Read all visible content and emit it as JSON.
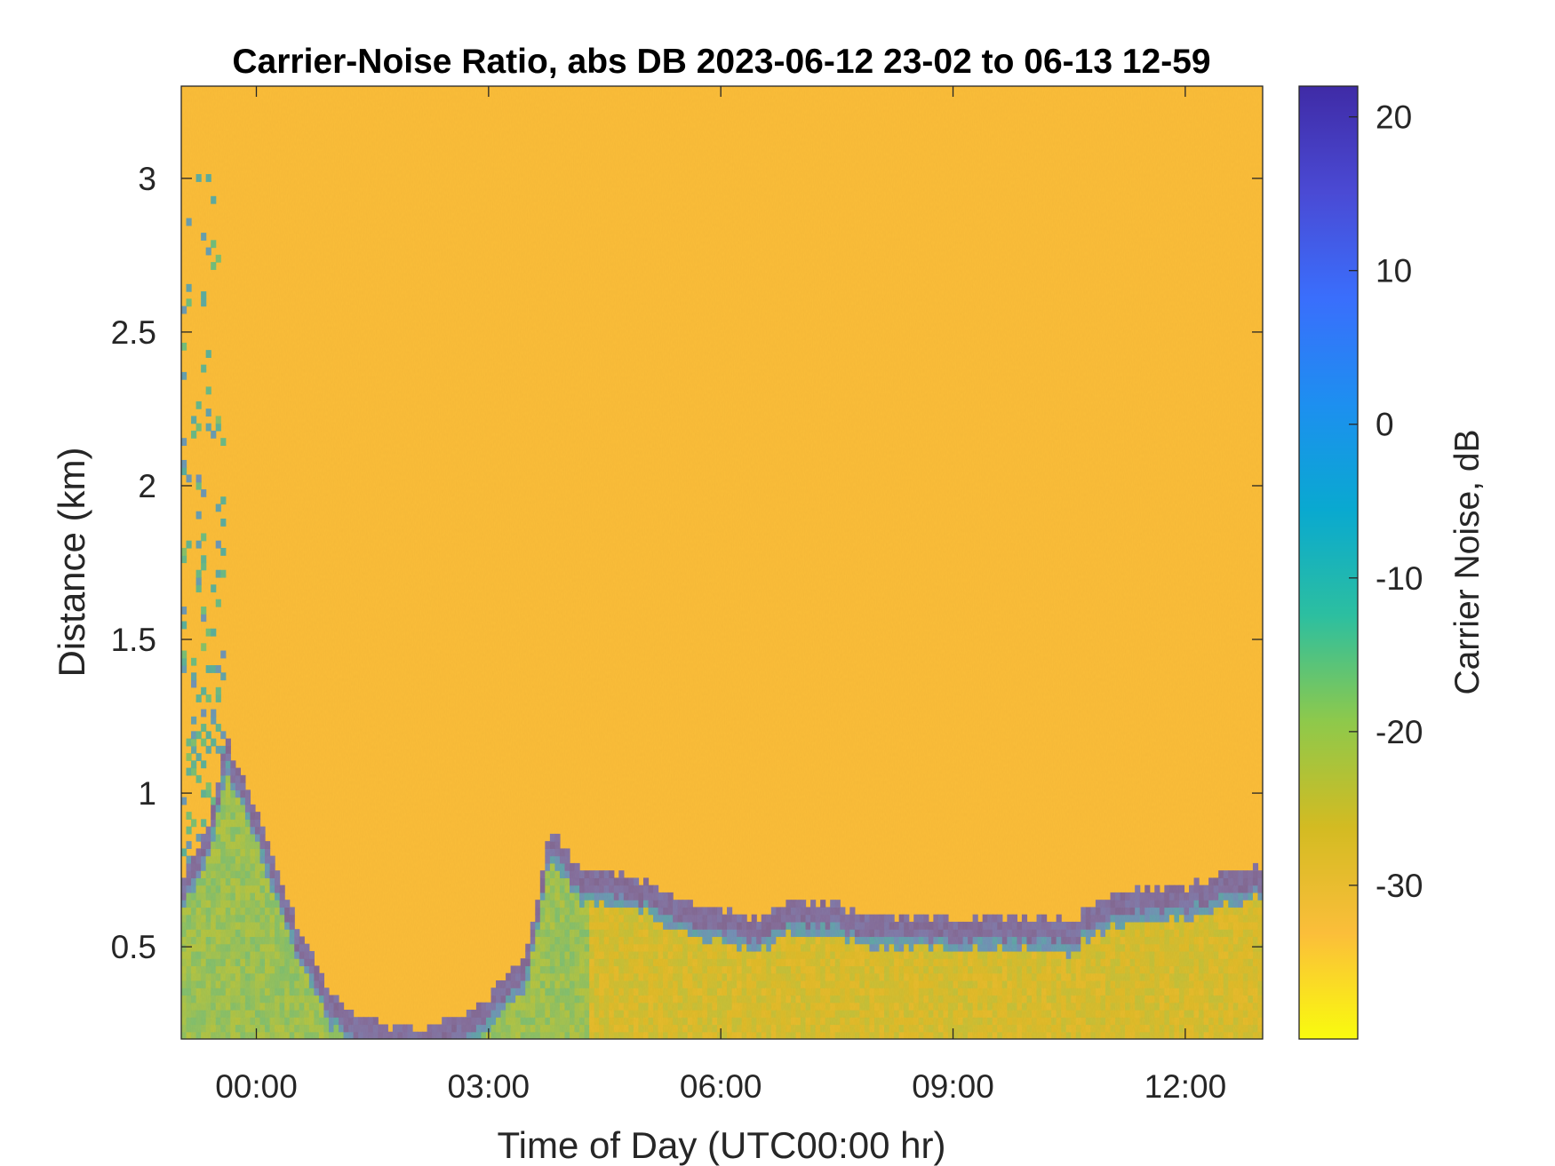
{
  "chart_data": {
    "type": "heatmap",
    "title": "Carrier-Noise Ratio, abs DB 2023-06-12 23-02 to 06-13 12-59",
    "xlabel": "Time of Day (UTC00:00 hr)",
    "ylabel": "Distance (km)",
    "xlim_hours": [
      -0.97,
      13.0
    ],
    "ylim": [
      0.2,
      3.3
    ],
    "x_ticks": [
      {
        "value": 0,
        "label": "00:00"
      },
      {
        "value": 3,
        "label": "03:00"
      },
      {
        "value": 6,
        "label": "06:00"
      },
      {
        "value": 9,
        "label": "09:00"
      },
      {
        "value": 12,
        "label": "12:00"
      }
    ],
    "y_ticks": [
      {
        "value": 0.5,
        "label": "0.5"
      },
      {
        "value": 1,
        "label": "1"
      },
      {
        "value": 1.5,
        "label": "1.5"
      },
      {
        "value": 2,
        "label": "2"
      },
      {
        "value": 2.5,
        "label": "2.5"
      },
      {
        "value": 3,
        "label": "3"
      }
    ],
    "colorbar": {
      "label": "Carrier Noise, dB",
      "range": [
        -40,
        22
      ],
      "ticks": [
        {
          "value": -30,
          "label": "-30"
        },
        {
          "value": -20,
          "label": "-20"
        },
        {
          "value": -10,
          "label": "-10"
        },
        {
          "value": 0,
          "label": "0"
        },
        {
          "value": 10,
          "label": "10"
        },
        {
          "value": 20,
          "label": "20"
        }
      ],
      "colormap": [
        "#f9fb0e",
        "#fbbe3a",
        "#d3bb22",
        "#8ec94b",
        "#2cbfa0",
        "#09a9d0",
        "#1d8ff0",
        "#3a6efc",
        "#4a4ad4",
        "#3f2ba6"
      ]
    },
    "background_db": -32,
    "features": {
      "boundary_layer_top_km": {
        "x": [
          -0.97,
          -0.6,
          -0.4,
          0.0,
          0.5,
          1.0,
          1.5,
          2.0,
          2.5,
          3.0,
          3.5,
          3.8,
          4.2,
          4.6,
          5.0,
          5.5,
          6.0,
          6.5,
          7.0,
          7.5,
          8.0,
          8.5,
          9.0,
          9.5,
          10.0,
          10.5,
          10.8,
          11.0,
          11.5,
          12.0,
          12.3,
          12.6,
          13.0
        ],
        "y": [
          0.7,
          0.85,
          1.15,
          0.9,
          0.55,
          0.3,
          0.22,
          0.2,
          0.22,
          0.3,
          0.45,
          0.85,
          0.72,
          0.7,
          0.68,
          0.62,
          0.58,
          0.56,
          0.62,
          0.6,
          0.57,
          0.56,
          0.56,
          0.56,
          0.56,
          0.55,
          0.6,
          0.63,
          0.65,
          0.66,
          0.68,
          0.72,
          0.73
        ]
      }
    }
  }
}
